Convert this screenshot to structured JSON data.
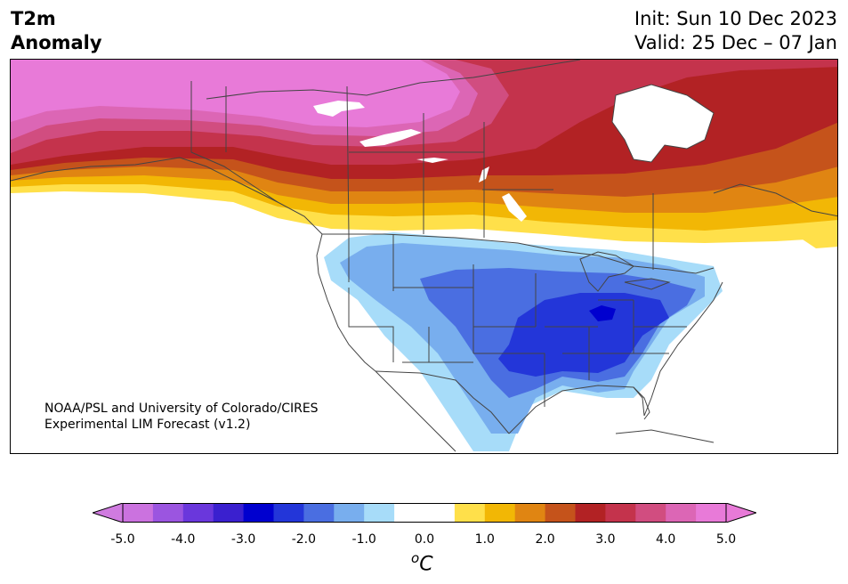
{
  "header": {
    "title_line1": "T2m",
    "title_line2": "Anomaly",
    "init_label": "Init: Sun 10 Dec 2023",
    "valid_label": "Valid: 25 Dec – 07 Jan"
  },
  "map": {
    "credit_line1": "NOAA/PSL and University of Colorado/CIRES",
    "credit_line2": "Experimental LIM Forecast (v1.2)",
    "region": "North America",
    "variable": "2m temperature anomaly",
    "land_color": "#ffffff",
    "border_color": "#444444"
  },
  "colorbar": {
    "unit_symbol": "o",
    "unit_letter": "C",
    "tick_labels": [
      "-5.0",
      "-4.0",
      "-3.0",
      "-2.0",
      "-1.0",
      "0.0",
      "1.0",
      "2.0",
      "3.0",
      "4.0",
      "5.0"
    ],
    "colors": [
      "#cb72df",
      "#9b55e0",
      "#6a37dc",
      "#3a20cf",
      "#0000cf",
      "#2336d9",
      "#4a6ee1",
      "#78aeee",
      "#a7dcf9",
      "#ffffff",
      "#ffffff",
      "#ffe04a",
      "#f2b705",
      "#e08512",
      "#c5531b",
      "#b22224",
      "#c4334c",
      "#d14d80",
      "#dc66b5",
      "#e87ad8"
    ],
    "extend_low_color": "#d07be0",
    "extend_high_color": "#e87ad8"
  }
}
